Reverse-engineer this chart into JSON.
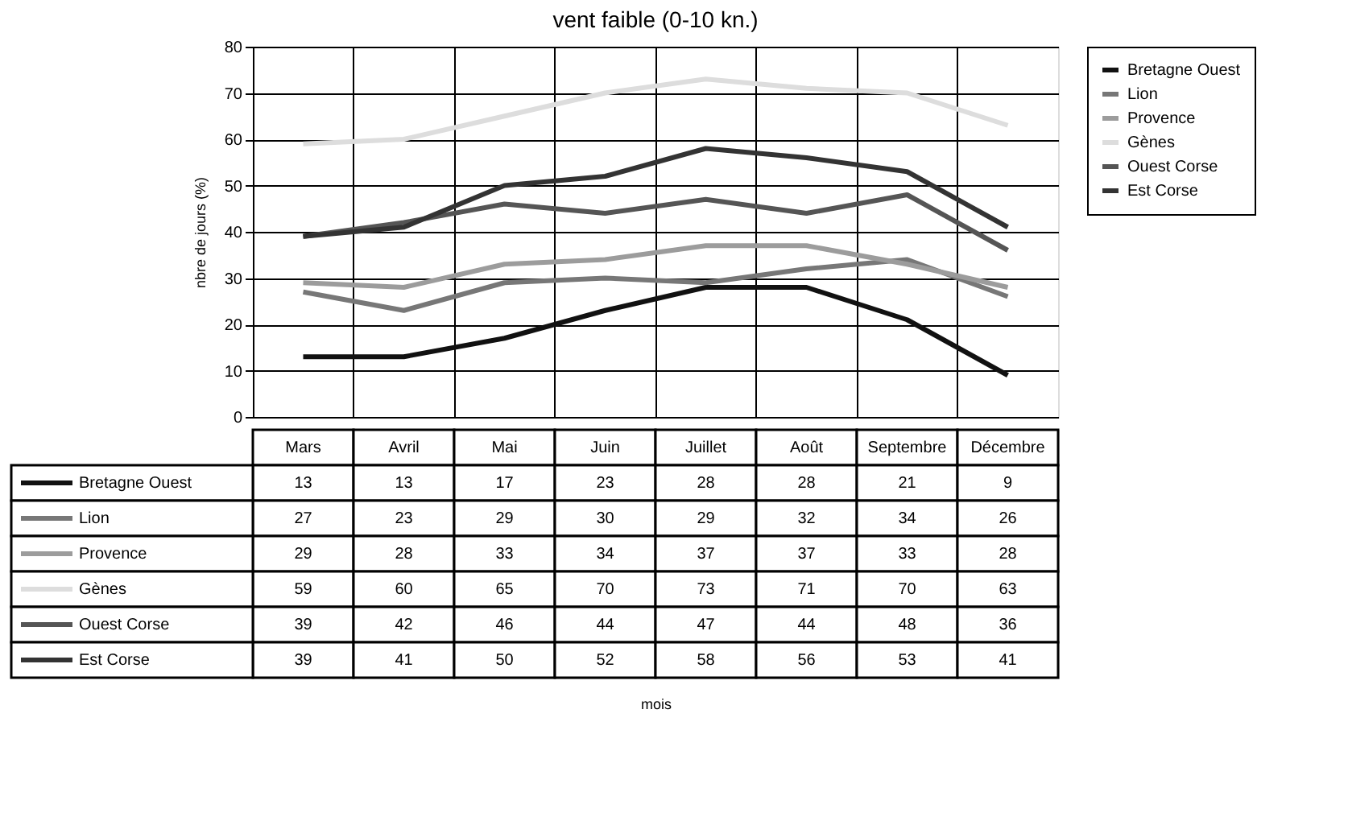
{
  "chart_data": {
    "type": "line",
    "title": "vent faible (0-10 kn.)",
    "annotations": [
      "mois"
    ],
    "ylabel": "nbre de jours (%)",
    "categories": [
      "Mars",
      "Avril",
      "Mai",
      "Juin",
      "Juillet",
      "Août",
      "Septembre",
      "Décembre"
    ],
    "series": [
      {
        "name": "Bretagne Ouest",
        "color": "#111111",
        "values": [
          13,
          13,
          17,
          23,
          28,
          28,
          21,
          9
        ]
      },
      {
        "name": "Lion",
        "color": "#777777",
        "values": [
          27,
          23,
          29,
          30,
          29,
          32,
          34,
          26
        ]
      },
      {
        "name": "Provence",
        "color": "#9c9c9c",
        "values": [
          29,
          28,
          33,
          34,
          37,
          37,
          33,
          28
        ]
      },
      {
        "name": "Gènes",
        "color": "#dddddd",
        "values": [
          59,
          60,
          65,
          70,
          73,
          71,
          70,
          63
        ]
      },
      {
        "name": "Ouest Corse",
        "color": "#555555",
        "values": [
          39,
          42,
          46,
          44,
          47,
          44,
          48,
          36
        ]
      },
      {
        "name": "Est Corse",
        "color": "#333333",
        "values": [
          39,
          41,
          50,
          52,
          58,
          56,
          53,
          41
        ]
      }
    ],
    "ylim": [
      0,
      80
    ],
    "yticks": [
      0,
      10,
      20,
      30,
      40,
      50,
      60,
      70,
      80
    ],
    "grid": true,
    "legend": "right",
    "data_labels": true
  }
}
